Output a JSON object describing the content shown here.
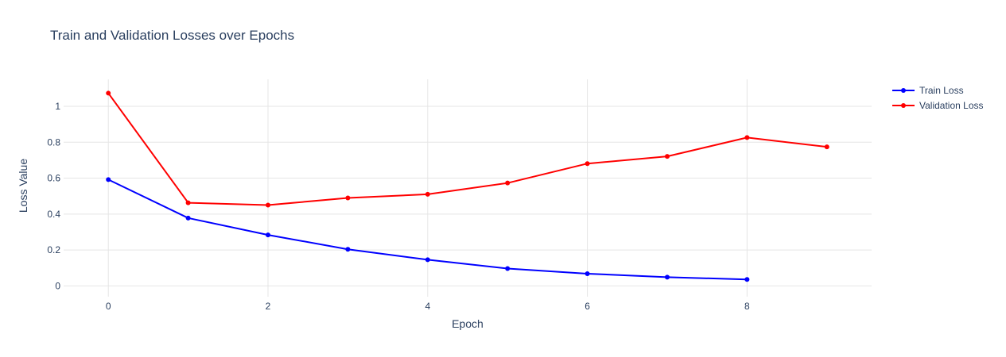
{
  "chart_data": {
    "type": "line",
    "title": "Train and Validation Losses over Epochs",
    "xlabel": "Epoch",
    "ylabel": "Loss Value",
    "xlim": [
      -0.56,
      9.56
    ],
    "ylim": [
      -0.06,
      1.15
    ],
    "xticks": [
      0,
      2,
      4,
      6,
      8
    ],
    "xtick_labels": [
      "0",
      "2",
      "4",
      "6",
      "8"
    ],
    "yticks": [
      0,
      0.2,
      0.4,
      0.6,
      0.8,
      1
    ],
    "ytick_labels": [
      "0",
      "0.2",
      "0.4",
      "0.6",
      "0.8",
      "1"
    ],
    "grid": true,
    "legend_position": "top-right",
    "series": [
      {
        "name": "Train Loss",
        "color": "#0000ff",
        "mode": "lines+markers",
        "x": [
          0,
          1,
          2,
          3,
          4,
          5,
          6,
          7,
          8
        ],
        "y": [
          0.592,
          0.378,
          0.284,
          0.204,
          0.146,
          0.097,
          0.068,
          0.049,
          0.036
        ]
      },
      {
        "name": "Validation Loss",
        "color": "#ff0000",
        "mode": "lines+markers",
        "x": [
          0,
          1,
          2,
          3,
          4,
          5,
          6,
          7,
          8,
          9
        ],
        "y": [
          1.073,
          0.463,
          0.45,
          0.49,
          0.51,
          0.573,
          0.681,
          0.721,
          0.826,
          0.774
        ]
      }
    ]
  }
}
